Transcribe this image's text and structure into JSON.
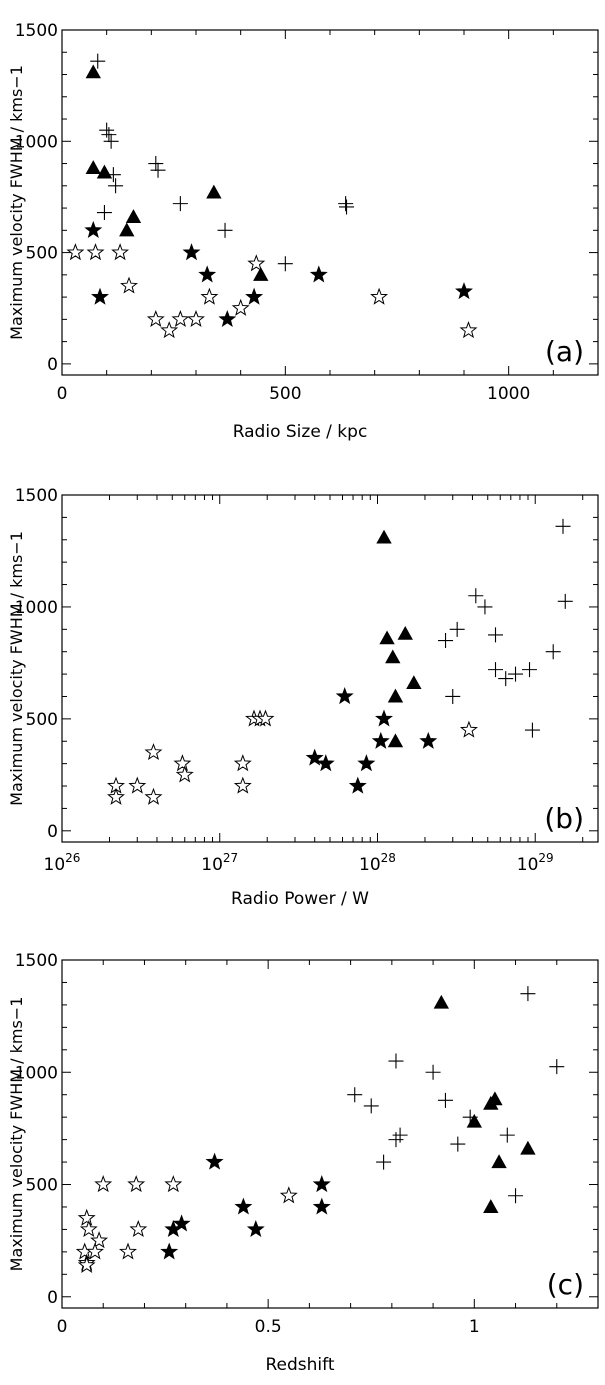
{
  "chart_data": [
    {
      "type": "scatter",
      "panel_label": "(a)",
      "xlabel": "Radio Size / kpc",
      "ylabel": "Maximum velocity FWHM / kms−1",
      "xscale": "linear",
      "xlim": [
        0,
        1200
      ],
      "ylim": [
        -50,
        1500
      ],
      "x_ticks": [
        0,
        500,
        1000
      ],
      "x_tick_labels": [
        "0",
        "500",
        "1000"
      ],
      "y_ticks": [
        0,
        500,
        1000,
        1500
      ],
      "y_tick_labels": [
        "0",
        "500",
        "1000",
        "1500"
      ],
      "grid": false,
      "series": [
        {
          "marker": "plus",
          "points": [
            [
              80,
              1360
            ],
            [
              100,
              1050
            ],
            [
              105,
              1030
            ],
            [
              110,
              1000
            ],
            [
              115,
              850
            ],
            [
              120,
              800
            ],
            [
              95,
              680
            ],
            [
              210,
              900
            ],
            [
              215,
              870
            ],
            [
              265,
              720
            ],
            [
              365,
              600
            ],
            [
              500,
              450
            ],
            [
              635,
              720
            ],
            [
              637,
              705
            ]
          ]
        },
        {
          "marker": "filled-triangle",
          "points": [
            [
              70,
              1310
            ],
            [
              70,
              880
            ],
            [
              95,
              860
            ],
            [
              160,
              660
            ],
            [
              145,
              600
            ],
            [
              340,
              770
            ],
            [
              445,
              400
            ]
          ]
        },
        {
          "marker": "filled-star",
          "points": [
            [
              70,
              600
            ],
            [
              85,
              300
            ],
            [
              290,
              500
            ],
            [
              325,
              400
            ],
            [
              370,
              200
            ],
            [
              430,
              300
            ],
            [
              575,
              400
            ],
            [
              900,
              325
            ]
          ]
        },
        {
          "marker": "open-star",
          "points": [
            [
              30,
              500
            ],
            [
              75,
              500
            ],
            [
              130,
              500
            ],
            [
              150,
              350
            ],
            [
              210,
              200
            ],
            [
              240,
              150
            ],
            [
              265,
              200
            ],
            [
              300,
              200
            ],
            [
              330,
              300
            ],
            [
              400,
              250
            ],
            [
              435,
              450
            ],
            [
              710,
              300
            ],
            [
              910,
              150
            ]
          ]
        }
      ]
    },
    {
      "type": "scatter",
      "panel_label": "(b)",
      "xlabel": "Radio Power / W",
      "ylabel": "Maximum velocity FWHM / kms−1",
      "xscale": "log",
      "xlim": [
        1e+26,
        2.5e+29
      ],
      "ylim": [
        -50,
        1500
      ],
      "x_ticks": [
        1e+26,
        1e+27,
        1e+28,
        1e+29
      ],
      "x_tick_labels": [
        {
          "base": "10",
          "exp": "26"
        },
        {
          "base": "10",
          "exp": "27"
        },
        {
          "base": "10",
          "exp": "28"
        },
        {
          "base": "10",
          "exp": "29"
        }
      ],
      "y_ticks": [
        0,
        500,
        1000,
        1500
      ],
      "y_tick_labels": [
        "0",
        "500",
        "1000",
        "1500"
      ],
      "grid": false,
      "series": [
        {
          "marker": "plus",
          "points": [
            [
              1.5e+29,
              1360
            ],
            [
              1.55e+29,
              1025
            ],
            [
              4.2e+28,
              1050
            ],
            [
              4.8e+28,
              1000
            ],
            [
              3.2e+28,
              900
            ],
            [
              2.7e+28,
              850
            ],
            [
              5.6e+28,
              875
            ],
            [
              5.6e+28,
              720
            ],
            [
              6.5e+28,
              680
            ],
            [
              7.5e+28,
              700
            ],
            [
              9.2e+28,
              720
            ],
            [
              1.3e+29,
              800
            ],
            [
              3e+28,
              600
            ],
            [
              9.6e+28,
              450
            ]
          ]
        },
        {
          "marker": "filled-triangle",
          "points": [
            [
              1.1e+28,
              1310
            ],
            [
              1.5e+28,
              880
            ],
            [
              1.15e+28,
              860
            ],
            [
              1.25e+28,
              775
            ],
            [
              1.7e+28,
              660
            ],
            [
              1.3e+28,
              600
            ],
            [
              1.3e+28,
              400
            ]
          ]
        },
        {
          "marker": "filled-star",
          "points": [
            [
              6.2e+27,
              600
            ],
            [
              1.1e+28,
              500
            ],
            [
              1.05e+28,
              400
            ],
            [
              2.1e+28,
              400
            ],
            [
              4e+27,
              325
            ],
            [
              4.7e+27,
              300
            ],
            [
              8.5e+27,
              300
            ],
            [
              7.5e+27,
              200
            ]
          ]
        },
        {
          "marker": "open-star",
          "points": [
            [
              1.65e+27,
              500
            ],
            [
              1.8e+27,
              500
            ],
            [
              1.95e+27,
              500
            ],
            [
              3.8e+26,
              350
            ],
            [
              5.8e+26,
              300
            ],
            [
              6e+26,
              250
            ],
            [
              1.4e+27,
              300
            ],
            [
              1.4e+27,
              200
            ],
            [
              2.2e+26,
              200
            ],
            [
              2.2e+26,
              150
            ],
            [
              3e+26,
              200
            ],
            [
              3.8e+26,
              150
            ],
            [
              3.8e+28,
              450
            ]
          ]
        }
      ]
    },
    {
      "type": "scatter",
      "panel_label": "(c)",
      "xlabel": "Redshift",
      "ylabel": "Maximum velocity FWHM / kms−1",
      "xscale": "linear",
      "xlim": [
        0,
        1.3
      ],
      "ylim": [
        -50,
        1500
      ],
      "x_ticks": [
        0,
        0.5,
        1
      ],
      "x_tick_labels": [
        "0",
        "0.5",
        "1"
      ],
      "y_ticks": [
        0,
        500,
        1000,
        1500
      ],
      "y_tick_labels": [
        "0",
        "500",
        "1000",
        "1500"
      ],
      "grid": false,
      "series": [
        {
          "marker": "plus",
          "points": [
            [
              1.13,
              1350
            ],
            [
              1.2,
              1025
            ],
            [
              0.81,
              1050
            ],
            [
              0.9,
              1000
            ],
            [
              0.71,
              900
            ],
            [
              0.75,
              850
            ],
            [
              0.93,
              875
            ],
            [
              0.99,
              800
            ],
            [
              0.82,
              720
            ],
            [
              0.81,
              700
            ],
            [
              0.96,
              680
            ],
            [
              1.08,
              720
            ],
            [
              0.78,
              600
            ],
            [
              1.1,
              450
            ]
          ]
        },
        {
          "marker": "filled-triangle",
          "points": [
            [
              0.92,
              1310
            ],
            [
              1.05,
              880
            ],
            [
              1.04,
              860
            ],
            [
              1.0,
              780
            ],
            [
              1.13,
              660
            ],
            [
              1.06,
              600
            ],
            [
              1.04,
              400
            ]
          ]
        },
        {
          "marker": "filled-star",
          "points": [
            [
              0.37,
              600
            ],
            [
              0.63,
              500
            ],
            [
              0.44,
              400
            ],
            [
              0.63,
              400
            ],
            [
              0.29,
              325
            ],
            [
              0.27,
              300
            ],
            [
              0.47,
              300
            ],
            [
              0.26,
              200
            ]
          ]
        },
        {
          "marker": "open-star",
          "points": [
            [
              0.1,
              500
            ],
            [
              0.18,
              500
            ],
            [
              0.27,
              500
            ],
            [
              0.06,
              350
            ],
            [
              0.065,
              300
            ],
            [
              0.185,
              300
            ],
            [
              0.09,
              250
            ],
            [
              0.055,
              200
            ],
            [
              0.08,
              200
            ],
            [
              0.16,
              200
            ],
            [
              0.06,
              150
            ],
            [
              0.06,
              140
            ],
            [
              0.55,
              450
            ]
          ]
        }
      ]
    }
  ]
}
